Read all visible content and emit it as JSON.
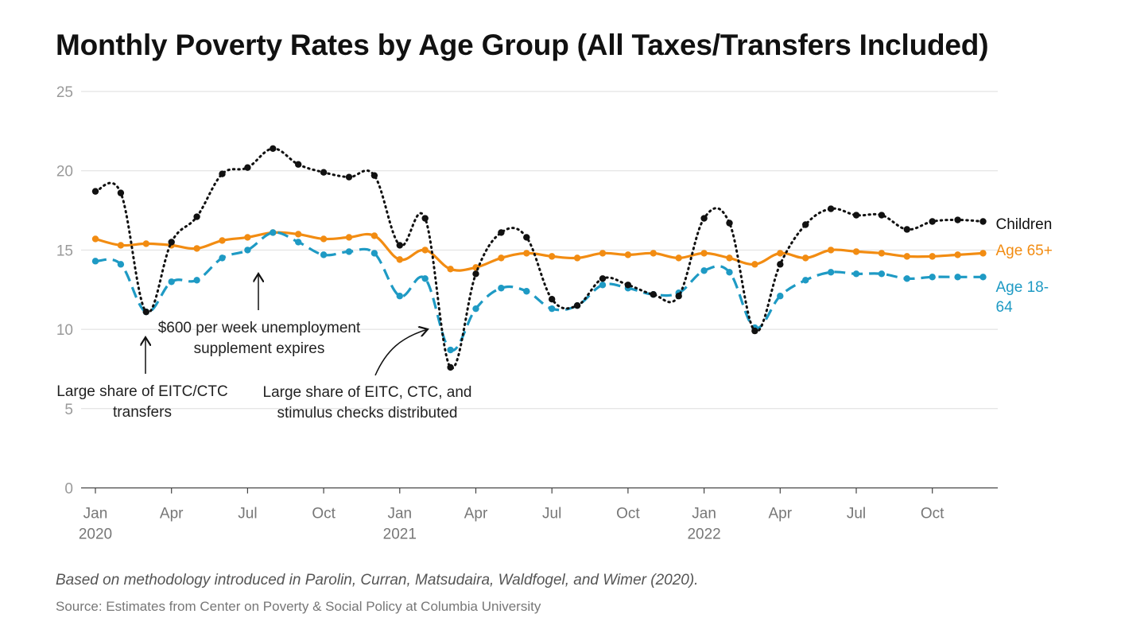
{
  "title": "Monthly Poverty Rates by Age Group (All Taxes/Transfers Included)",
  "note": "Based on methodology introduced in Parolin, Curran, Matsudaira, Waldfogel, and Wimer (2020).",
  "source": "Source: Estimates from Center on Poverty & Social Policy at Columbia University",
  "chart_data": {
    "type": "line",
    "title": "Monthly Poverty Rates by Age Group (All Taxes/Transfers Included)",
    "ylim": [
      0,
      25
    ],
    "yticks": [
      0,
      5,
      10,
      15,
      20,
      25
    ],
    "grid": true,
    "x": [
      "2020-01",
      "2020-02",
      "2020-03",
      "2020-04",
      "2020-05",
      "2020-06",
      "2020-07",
      "2020-08",
      "2020-09",
      "2020-10",
      "2020-11",
      "2020-12",
      "2021-01",
      "2021-02",
      "2021-03",
      "2021-04",
      "2021-05",
      "2021-06",
      "2021-07",
      "2021-08",
      "2021-09",
      "2021-10",
      "2021-11",
      "2021-12",
      "2022-01",
      "2022-02",
      "2022-03",
      "2022-04",
      "2022-05",
      "2022-06",
      "2022-07",
      "2022-08",
      "2022-09",
      "2022-10",
      "2022-11",
      "2022-12"
    ],
    "xticks": [
      {
        "index": 0,
        "label": "Jan",
        "year": "2020"
      },
      {
        "index": 3,
        "label": "Apr",
        "year": ""
      },
      {
        "index": 6,
        "label": "Jul",
        "year": ""
      },
      {
        "index": 9,
        "label": "Oct",
        "year": ""
      },
      {
        "index": 12,
        "label": "Jan",
        "year": "2021"
      },
      {
        "index": 15,
        "label": "Apr",
        "year": ""
      },
      {
        "index": 18,
        "label": "Jul",
        "year": ""
      },
      {
        "index": 21,
        "label": "Oct",
        "year": ""
      },
      {
        "index": 24,
        "label": "Jan",
        "year": "2022"
      },
      {
        "index": 27,
        "label": "Apr",
        "year": ""
      },
      {
        "index": 30,
        "label": "Jul",
        "year": ""
      },
      {
        "index": 33,
        "label": "Oct",
        "year": ""
      }
    ],
    "series": [
      {
        "name": "Children",
        "color": "#111111",
        "style": "dotted",
        "label_lines": [
          "Children"
        ],
        "values": [
          18.7,
          18.6,
          11.1,
          15.5,
          17.1,
          19.8,
          20.2,
          21.4,
          20.4,
          19.9,
          19.6,
          19.7,
          15.3,
          17.0,
          7.6,
          13.5,
          16.1,
          15.8,
          11.9,
          11.5,
          13.2,
          12.8,
          12.2,
          12.1,
          17.0,
          16.7,
          9.9,
          14.1,
          16.6,
          17.6,
          17.2,
          17.2,
          16.3,
          16.8,
          16.9,
          16.8
        ]
      },
      {
        "name": "Age 65+",
        "color": "#f28c12",
        "style": "solid",
        "label_lines": [
          "Age 65+"
        ],
        "values": [
          15.7,
          15.3,
          15.4,
          15.3,
          15.1,
          15.6,
          15.8,
          16.1,
          16.0,
          15.7,
          15.8,
          15.9,
          14.4,
          15.0,
          13.8,
          13.9,
          14.5,
          14.8,
          14.6,
          14.5,
          14.8,
          14.7,
          14.8,
          14.5,
          14.8,
          14.5,
          14.1,
          14.8,
          14.5,
          15.0,
          14.9,
          14.8,
          14.6,
          14.6,
          14.7,
          14.8
        ]
      },
      {
        "name": "Age 18-64",
        "color": "#1e9ac4",
        "style": "dashed",
        "label_lines": [
          "Age 18-",
          "64"
        ],
        "values": [
          14.3,
          14.1,
          11.1,
          13.0,
          13.1,
          14.5,
          15.0,
          16.1,
          15.5,
          14.7,
          14.9,
          14.8,
          12.1,
          13.2,
          8.7,
          11.3,
          12.6,
          12.4,
          11.3,
          11.5,
          12.8,
          12.6,
          12.2,
          12.3,
          13.7,
          13.6,
          10.1,
          12.1,
          13.1,
          13.6,
          13.5,
          13.5,
          13.2,
          13.3,
          13.3,
          13.3
        ]
      }
    ],
    "annotations": [
      {
        "lines": [
          "$600 per week unemployment",
          "supplement expires"
        ]
      },
      {
        "lines": [
          "Large share of EITC/CTC",
          "transfers"
        ]
      },
      {
        "lines": [
          "Large share of EITC, CTC, and",
          "stimulus checks distributed"
        ]
      }
    ]
  }
}
